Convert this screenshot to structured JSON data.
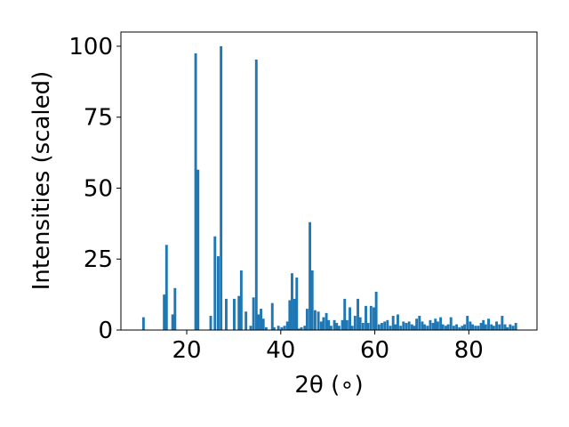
{
  "chart_data": {
    "type": "bar",
    "title": "",
    "xlabel": "2θ (∘)",
    "ylabel": "Intensities (scaled)",
    "xlim": [
      6.0,
      94.5
    ],
    "ylim": [
      0,
      105
    ],
    "xticks": [
      20,
      40,
      60,
      80
    ],
    "yticks": [
      0,
      25,
      50,
      75,
      100
    ],
    "bar_width_data": 0.55,
    "color": "#1f77b4",
    "grid": false,
    "legend": "none",
    "x": [
      10.8,
      15.2,
      15.7,
      17.0,
      17.5,
      21.9,
      22.4,
      25.1,
      26.0,
      26.7,
      27.3,
      28.4,
      30.1,
      31.1,
      31.6,
      32.6,
      33.6,
      34.2,
      34.8,
      35.3,
      35.8,
      36.3,
      36.9,
      38.2,
      38.6,
      39.5,
      40.2,
      40.8,
      41.4,
      41.9,
      42.4,
      42.9,
      43.4,
      43.9,
      44.4,
      45.1,
      45.6,
      46.2,
      46.7,
      47.3,
      48.0,
      48.6,
      49.1,
      49.7,
      50.2,
      50.7,
      51.4,
      51.9,
      52.4,
      53.1,
      53.6,
      54.1,
      54.7,
      55.2,
      55.8,
      56.4,
      56.9,
      57.5,
      58.1,
      58.6,
      59.2,
      59.8,
      60.3,
      60.9,
      61.5,
      62.1,
      62.7,
      63.3,
      63.9,
      64.4,
      64.9,
      65.5,
      66.1,
      66.7,
      67.3,
      67.9,
      68.4,
      68.9,
      69.5,
      70.1,
      70.6,
      71.2,
      71.8,
      72.4,
      72.9,
      73.4,
      74.0,
      74.5,
      75.1,
      75.6,
      76.2,
      76.8,
      77.4,
      78.0,
      78.6,
      79.1,
      79.7,
      80.3,
      80.8,
      81.4,
      82.0,
      82.6,
      83.1,
      83.6,
      84.2,
      84.8,
      85.3,
      85.9,
      86.5,
      87.1,
      87.7,
      88.2,
      88.8,
      89.4,
      90.0
    ],
    "values": [
      4.5,
      12.5,
      30,
      5.5,
      14.8,
      97.5,
      56.5,
      5,
      33,
      26,
      100,
      11,
      11,
      12,
      21,
      6.5,
      1.5,
      11.5,
      95.3,
      5.5,
      7.5,
      4,
      1,
      9.5,
      1,
      1.5,
      1,
      1.5,
      3,
      10.5,
      20,
      11,
      18.5,
      0.5,
      1,
      1.5,
      7.5,
      38,
      21,
      7,
      6.5,
      3,
      4.5,
      6,
      3.5,
      1.5,
      3.5,
      2.5,
      1.5,
      3.5,
      11,
      3.5,
      8,
      1.5,
      5,
      11,
      4.5,
      2.5,
      8.5,
      2.5,
      8.5,
      8,
      13.5,
      2,
      2.5,
      3,
      3.5,
      1.5,
      5,
      2,
      5.5,
      1.5,
      3,
      2.5,
      3,
      2,
      1.5,
      4,
      5,
      3,
      2,
      1.5,
      3.5,
      2.5,
      4,
      3,
      4.5,
      2,
      1.5,
      2,
      4.5,
      1.5,
      2,
      1,
      1.5,
      2,
      5,
      3,
      2,
      1.5,
      1.5,
      2.5,
      3.5,
      2,
      4,
      2,
      1.5,
      3,
      2,
      5,
      2,
      1,
      2,
      1.5,
      2.5
    ]
  }
}
